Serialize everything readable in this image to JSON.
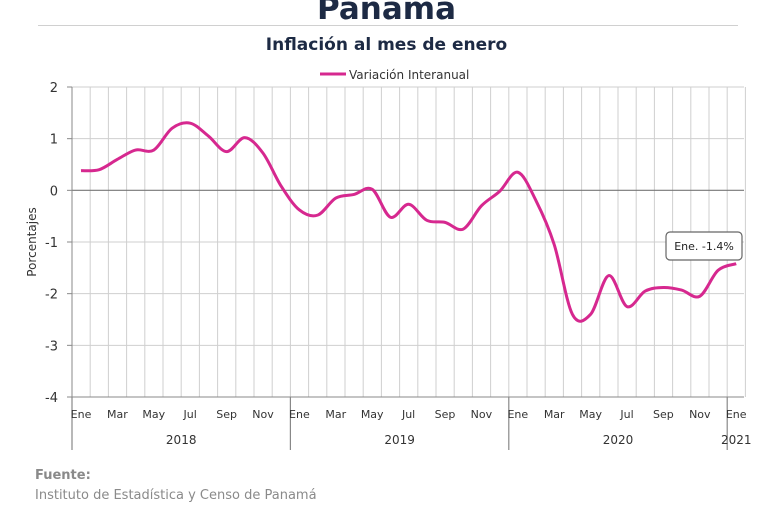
{
  "header": {
    "title": "Panamá",
    "subtitle": "Inflación al mes de enero"
  },
  "footer": {
    "source_label": "Fuente:",
    "source_text": "Instituto de Estadística y Censo de Panamá"
  },
  "chart_data": {
    "type": "line",
    "title": "Inflación al mes de enero",
    "ylabel": "Porcentajes",
    "xlabel": "",
    "ylim": [
      -4,
      2
    ],
    "yticks": [
      2,
      1,
      0,
      -1,
      -2,
      -3,
      -4
    ],
    "grid": true,
    "legend": "top-center",
    "month_tick_labels": [
      "Ene",
      "Mar",
      "May",
      "Jul",
      "Sep",
      "Nov",
      "Ene",
      "Mar",
      "May",
      "Jul",
      "Sep",
      "Nov",
      "Ene",
      "Mar",
      "May",
      "Jul",
      "Sep",
      "Nov",
      "Ene"
    ],
    "year_labels": [
      "2018",
      "2019",
      "2020",
      "2021"
    ],
    "x": [
      "2018-01",
      "2018-02",
      "2018-03",
      "2018-04",
      "2018-05",
      "2018-06",
      "2018-07",
      "2018-08",
      "2018-09",
      "2018-10",
      "2018-11",
      "2018-12",
      "2019-01",
      "2019-02",
      "2019-03",
      "2019-04",
      "2019-05",
      "2019-06",
      "2019-07",
      "2019-08",
      "2019-09",
      "2019-10",
      "2019-11",
      "2019-12",
      "2020-01",
      "2020-02",
      "2020-03",
      "2020-04",
      "2020-05",
      "2020-06",
      "2020-07",
      "2020-08",
      "2020-09",
      "2020-10",
      "2020-11",
      "2020-12",
      "2021-01"
    ],
    "series": [
      {
        "name": "Variación Interanual",
        "color": "#d6288f",
        "values": [
          0.38,
          0.4,
          0.6,
          0.78,
          0.78,
          1.2,
          1.3,
          1.05,
          0.75,
          1.02,
          0.72,
          0.08,
          -0.38,
          -0.48,
          -0.15,
          -0.08,
          0.02,
          -0.52,
          -0.27,
          -0.58,
          -0.62,
          -0.75,
          -0.3,
          -0.02,
          0.35,
          -0.2,
          -1.05,
          -2.4,
          -2.4,
          -1.65,
          -2.25,
          -1.95,
          -1.88,
          -1.93,
          -2.05,
          -1.55,
          -1.42
        ]
      }
    ],
    "annotations": [
      {
        "text": "Ene. -1.4%",
        "x": "2021-01",
        "y": -1.4
      }
    ]
  }
}
